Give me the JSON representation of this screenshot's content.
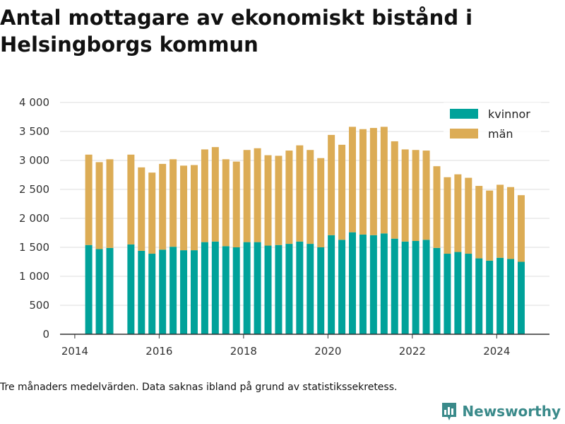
{
  "title": "Antal mottagare av ekonomiskt bistånd i Helsingborgs kommun",
  "caption": "Tre månaders medelvärden. Data saknas ibland på grund av statistikssekretess.",
  "brand": {
    "name": "Newsworthy",
    "icon": "newsworthy-logo-icon",
    "color": "#3a8a8a"
  },
  "chart_data": {
    "type": "bar",
    "stacked": true,
    "title": "Antal mottagare av ekonomiskt bistånd i Helsingborgs kommun",
    "xlabel": "",
    "ylabel": "",
    "xlim": [
      2013.65,
      2025.25
    ],
    "ylim": [
      0,
      4000
    ],
    "x_ticks": [
      2014,
      2016,
      2018,
      2020,
      2022,
      2024
    ],
    "y_ticks": [
      0,
      500,
      1000,
      1500,
      2000,
      2500,
      3000,
      3500,
      4000
    ],
    "y_tick_labels": [
      "0",
      "500",
      "1 000",
      "1 500",
      "2 000",
      "2 500",
      "3 000",
      "3 500",
      "4 000"
    ],
    "grid": "horizontal",
    "legend_position": "top-right",
    "x": [
      2014.33,
      2014.58,
      2014.83,
      2015.33,
      2015.58,
      2015.83,
      2016.08,
      2016.33,
      2016.58,
      2016.83,
      2017.08,
      2017.33,
      2017.58,
      2017.83,
      2018.08,
      2018.33,
      2018.58,
      2018.83,
      2019.08,
      2019.33,
      2019.58,
      2019.83,
      2020.08,
      2020.33,
      2020.58,
      2020.83,
      2021.08,
      2021.33,
      2021.58,
      2021.83,
      2022.08,
      2022.33,
      2022.58,
      2022.83,
      2023.08,
      2023.33,
      2023.58,
      2023.83,
      2024.08,
      2024.33,
      2024.58
    ],
    "series": [
      {
        "name": "kvinnor",
        "color": "#00a29a",
        "values": [
          1540,
          1470,
          1490,
          1550,
          1440,
          1390,
          1460,
          1510,
          1450,
          1450,
          1590,
          1600,
          1520,
          1500,
          1590,
          1590,
          1530,
          1540,
          1560,
          1600,
          1560,
          1500,
          1710,
          1630,
          1760,
          1720,
          1710,
          1740,
          1650,
          1600,
          1610,
          1630,
          1490,
          1390,
          1420,
          1390,
          1310,
          1270,
          1320,
          1300,
          1250
        ]
      },
      {
        "name": "män",
        "color": "#dcac55",
        "values": [
          1560,
          1500,
          1530,
          1550,
          1440,
          1400,
          1480,
          1510,
          1460,
          1470,
          1600,
          1630,
          1500,
          1480,
          1590,
          1620,
          1560,
          1540,
          1610,
          1660,
          1620,
          1540,
          1730,
          1640,
          1820,
          1820,
          1850,
          1840,
          1680,
          1590,
          1570,
          1540,
          1410,
          1320,
          1340,
          1310,
          1250,
          1210,
          1260,
          1240,
          1150
        ]
      }
    ]
  }
}
